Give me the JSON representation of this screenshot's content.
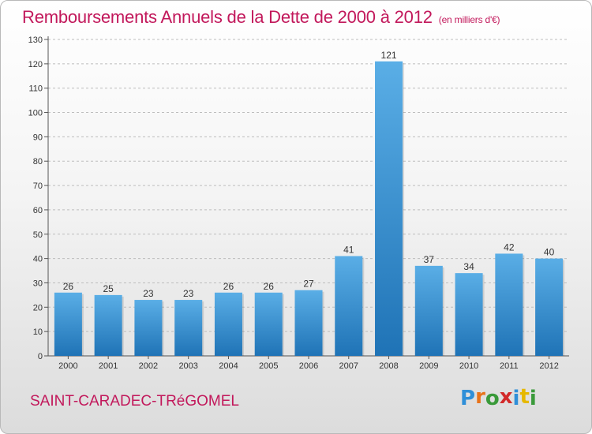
{
  "chart_data": {
    "type": "bar",
    "title": "Remboursements Annuels de la Dette de 2000 à 2012",
    "unit_note": "(en milliers d'€)",
    "categories": [
      "2000",
      "2001",
      "2002",
      "2003",
      "2004",
      "2005",
      "2006",
      "2007",
      "2008",
      "2009",
      "2010",
      "2011",
      "2012"
    ],
    "values": [
      26,
      25,
      23,
      23,
      26,
      26,
      27,
      41,
      121,
      37,
      34,
      42,
      40
    ],
    "ylim": [
      0,
      130
    ],
    "yticks": [
      0,
      10,
      20,
      30,
      40,
      50,
      60,
      70,
      80,
      90,
      100,
      110,
      120,
      130
    ],
    "grid": "horizontal dashed",
    "colors": {
      "bar_top": "#5aaee6",
      "bar_bottom": "#1f73b6",
      "title": "#c2185b"
    }
  },
  "footer": {
    "city": "SAINT-CARADEC-TRéGOMEL",
    "brand_letters": [
      "P",
      "r",
      "o",
      "x",
      "i",
      "t",
      "i"
    ],
    "brand_colors": [
      "#2f8fd8",
      "#e8731a",
      "#3a9a3a",
      "#d22a2a",
      "#2f8fd8",
      "#e6b800",
      "#3a9a3a"
    ]
  }
}
